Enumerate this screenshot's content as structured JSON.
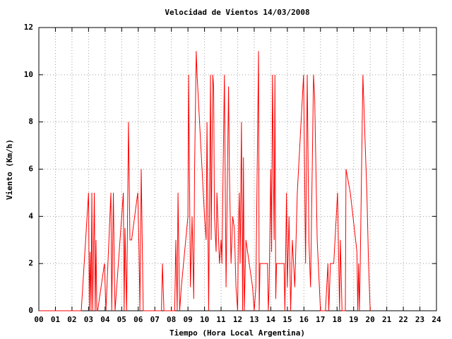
{
  "chart_data": {
    "type": "line",
    "title": "Velocidad de Vientos 14/03/2008",
    "x_label": "Tiempo (Hora Local Argentina)",
    "y_label": "Viento (Km/h)",
    "color": "#ff0000",
    "grid": true,
    "xlim": [
      0,
      24
    ],
    "ylim": [
      0,
      12
    ],
    "xticks": [
      {
        "value": 0,
        "label": "00"
      },
      {
        "value": 1,
        "label": "01"
      },
      {
        "value": 2,
        "label": "02"
      },
      {
        "value": 3,
        "label": "03"
      },
      {
        "value": 4,
        "label": "04"
      },
      {
        "value": 5,
        "label": "05"
      },
      {
        "value": 6,
        "label": "06"
      },
      {
        "value": 7,
        "label": "07"
      },
      {
        "value": 8,
        "label": "08"
      },
      {
        "value": 9,
        "label": "09"
      },
      10,
      11,
      12,
      13,
      14,
      15,
      16,
      17,
      18,
      19,
      20,
      21,
      22,
      23,
      24
    ],
    "yticks": [
      0,
      2,
      4,
      6,
      8,
      10,
      12
    ],
    "x": [
      0,
      2.56,
      3.0,
      3.05,
      3.1,
      3.15,
      3.2,
      3.25,
      3.35,
      3.4,
      3.45,
      3.5,
      3.55,
      3.96,
      4.05,
      4.35,
      4.4,
      4.5,
      4.55,
      4.6,
      5.1,
      5.15,
      5.2,
      5.3,
      5.41,
      5.5,
      5.6,
      5.97,
      6.05,
      6.1,
      6.18,
      6.3,
      7.4,
      7.46,
      7.55,
      8.2,
      8.27,
      8.35,
      8.4,
      8.5,
      8.6,
      9.0,
      9.04,
      9.15,
      9.25,
      9.35,
      9.4,
      9.5,
      9.55,
      10.0,
      10.1,
      10.15,
      10.25,
      10.36,
      10.4,
      10.5,
      10.55,
      10.6,
      10.7,
      10.75,
      10.85,
      10.9,
      11.0,
      11.05,
      11.2,
      11.3,
      11.45,
      11.5,
      11.6,
      11.7,
      11.8,
      11.9,
      12.0,
      12.05,
      12.1,
      12.15,
      12.23,
      12.3,
      12.35,
      12.4,
      12.5,
      12.9,
      13.0,
      13.1,
      13.26,
      13.3,
      13.35,
      13.8,
      13.85,
      13.9,
      14.0,
      14.05,
      14.1,
      14.2,
      14.25,
      14.3,
      14.35,
      14.8,
      14.85,
      14.95,
      15.0,
      15.1,
      15.2,
      15.3,
      15.45,
      15.6,
      15.98,
      16.1,
      16.2,
      16.3,
      16.4,
      16.58,
      16.65,
      16.8,
      17.0,
      17.3,
      17.45,
      17.5,
      17.6,
      17.8,
      18.03,
      18.15,
      18.2,
      18.3,
      18.5,
      18.54,
      18.8,
      19.2,
      19.25,
      19.3,
      19.35,
      19.4,
      19.56,
      19.7,
      19.8,
      19.9,
      20.0
    ],
    "values": [
      0,
      0,
      5,
      0,
      2.5,
      0,
      5,
      0,
      5,
      0,
      3,
      0,
      0,
      2,
      0,
      5,
      0,
      5,
      2,
      0,
      5,
      0,
      3.5,
      0,
      8,
      3,
      3,
      5,
      2.5,
      0,
      6,
      0,
      0,
      2,
      0,
      0,
      3,
      0,
      5,
      0,
      1,
      4,
      10,
      1,
      4,
      0.5,
      6,
      11,
      10,
      4,
      3,
      8,
      0,
      10,
      3,
      10,
      9.5,
      4,
      2.5,
      5,
      3,
      2,
      3,
      2,
      10,
      1,
      9.5,
      6,
      2,
      4,
      3.5,
      1,
      0,
      3.5,
      5,
      2,
      8,
      0,
      6.5,
      0,
      3,
      1,
      0,
      1,
      11,
      0,
      2,
      2,
      0,
      1,
      6,
      2.5,
      10,
      3,
      10,
      0.5,
      2,
      2,
      0,
      5,
      1,
      4,
      0,
      3,
      1,
      5,
      10,
      2,
      10,
      3,
      1,
      10,
      9,
      3,
      0,
      0,
      2,
      0,
      2,
      2,
      5,
      0,
      3,
      0,
      0,
      6,
      5,
      2.5,
      0,
      2,
      0,
      2,
      10,
      7,
      5,
      2,
      0
    ]
  }
}
